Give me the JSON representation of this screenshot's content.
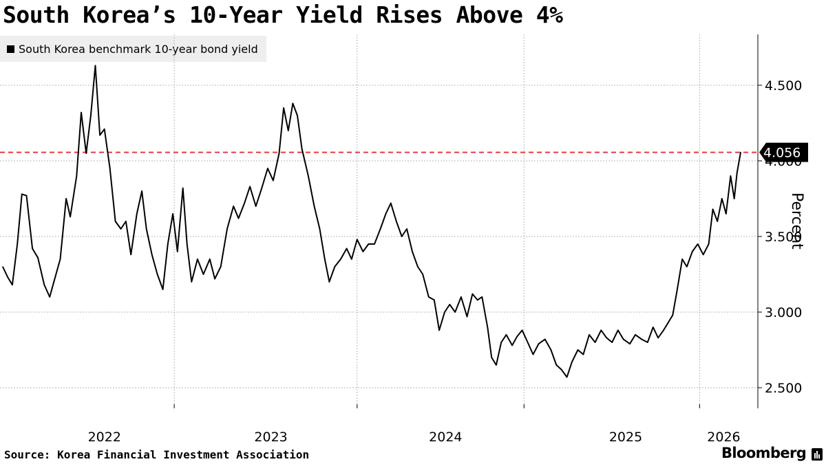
{
  "title": "South Korea’s 10-Year Yield Rises Above 4%",
  "legend_label": "South Korea benchmark 10-year bond yield",
  "source": "Source: Korea Financial Investment Association",
  "brand": "Bloomberg",
  "colors": {
    "line": "#000000",
    "reference_line": "#e8383d",
    "grid": "#b7b7b7",
    "callout_bg": "#000000",
    "legend_bg": "#eeeeee"
  },
  "chart_data": {
    "type": "line",
    "title": "South Korea’s 10-Year Yield Rises Above 4%",
    "xlabel": "",
    "ylabel": "Percent",
    "ylim": [
      2.35,
      4.85
    ],
    "xlim": [
      "2021-10-04",
      "2026-03-10"
    ],
    "grid": true,
    "legend_position": "top-left",
    "y_axis_side": "right",
    "yticks": [
      2.5,
      3.0,
      3.5,
      4.0,
      4.5
    ],
    "ytick_labels": [
      "2.500",
      "3.000",
      "3.500",
      "4.000",
      "4.500"
    ],
    "xtick_labels": [
      "2022",
      "2023",
      "2024",
      "2025",
      "2026"
    ],
    "x_label_positions": [
      "2022-05-15",
      "2023-05-15",
      "2024-06-01",
      "2025-07-01",
      "2026-02-01"
    ],
    "x_divider_dates": [
      "2022-10-15",
      "2023-11-20",
      "2024-11-20",
      "2025-12-10"
    ],
    "reference_line": {
      "value": 4.056,
      "style": "dashed"
    },
    "callout": {
      "label": "4.056",
      "value": 4.056
    },
    "series": [
      {
        "name": "South Korea benchmark 10-year bond yield",
        "points": [
          [
            "2021-10-04",
            3.3
          ],
          [
            "2021-10-15",
            3.23
          ],
          [
            "2021-10-25",
            3.18
          ],
          [
            "2021-11-05",
            3.45
          ],
          [
            "2021-11-15",
            3.78
          ],
          [
            "2021-11-25",
            3.77
          ],
          [
            "2021-12-08",
            3.42
          ],
          [
            "2021-12-20",
            3.36
          ],
          [
            "2022-01-03",
            3.18
          ],
          [
            "2022-01-15",
            3.1
          ],
          [
            "2022-01-25",
            3.21
          ],
          [
            "2022-02-07",
            3.35
          ],
          [
            "2022-02-20",
            3.75
          ],
          [
            "2022-03-01",
            3.63
          ],
          [
            "2022-03-15",
            3.9
          ],
          [
            "2022-03-25",
            4.32
          ],
          [
            "2022-04-05",
            4.05
          ],
          [
            "2022-04-15",
            4.3
          ],
          [
            "2022-04-25",
            4.63
          ],
          [
            "2022-05-05",
            4.17
          ],
          [
            "2022-05-15",
            4.21
          ],
          [
            "2022-05-27",
            3.95
          ],
          [
            "2022-06-08",
            3.6
          ],
          [
            "2022-06-20",
            3.55
          ],
          [
            "2022-07-01",
            3.6
          ],
          [
            "2022-07-12",
            3.38
          ],
          [
            "2022-07-25",
            3.65
          ],
          [
            "2022-08-05",
            3.8
          ],
          [
            "2022-08-15",
            3.55
          ],
          [
            "2022-08-27",
            3.38
          ],
          [
            "2022-09-08",
            3.25
          ],
          [
            "2022-09-20",
            3.15
          ],
          [
            "2022-10-01",
            3.45
          ],
          [
            "2022-10-12",
            3.65
          ],
          [
            "2022-10-22",
            3.4
          ],
          [
            "2022-11-03",
            3.82
          ],
          [
            "2022-11-12",
            3.45
          ],
          [
            "2022-11-22",
            3.2
          ],
          [
            "2022-12-05",
            3.35
          ],
          [
            "2022-12-18",
            3.25
          ],
          [
            "2023-01-01",
            3.35
          ],
          [
            "2023-01-12",
            3.22
          ],
          [
            "2023-01-25",
            3.3
          ],
          [
            "2023-02-08",
            3.55
          ],
          [
            "2023-02-22",
            3.7
          ],
          [
            "2023-03-05",
            3.62
          ],
          [
            "2023-03-18",
            3.72
          ],
          [
            "2023-03-30",
            3.83
          ],
          [
            "2023-04-12",
            3.7
          ],
          [
            "2023-04-25",
            3.82
          ],
          [
            "2023-05-08",
            3.95
          ],
          [
            "2023-05-20",
            3.87
          ],
          [
            "2023-06-02",
            4.05
          ],
          [
            "2023-06-12",
            4.35
          ],
          [
            "2023-06-22",
            4.2
          ],
          [
            "2023-07-02",
            4.38
          ],
          [
            "2023-07-12",
            4.3
          ],
          [
            "2023-07-22",
            4.08
          ],
          [
            "2023-08-05",
            3.9
          ],
          [
            "2023-08-18",
            3.7
          ],
          [
            "2023-08-30",
            3.55
          ],
          [
            "2023-09-10",
            3.35
          ],
          [
            "2023-09-20",
            3.2
          ],
          [
            "2023-10-02",
            3.3
          ],
          [
            "2023-10-15",
            3.35
          ],
          [
            "2023-10-28",
            3.42
          ],
          [
            "2023-11-08",
            3.35
          ],
          [
            "2023-11-20",
            3.48
          ],
          [
            "2023-12-03",
            3.4
          ],
          [
            "2023-12-15",
            3.45
          ],
          [
            "2023-12-28",
            3.45
          ],
          [
            "2024-01-10",
            3.55
          ],
          [
            "2024-01-22",
            3.65
          ],
          [
            "2024-02-02",
            3.72
          ],
          [
            "2024-02-14",
            3.6
          ],
          [
            "2024-02-26",
            3.5
          ],
          [
            "2024-03-08",
            3.55
          ],
          [
            "2024-03-20",
            3.4
          ],
          [
            "2024-04-01",
            3.3
          ],
          [
            "2024-04-12",
            3.25
          ],
          [
            "2024-04-25",
            3.1
          ],
          [
            "2024-05-07",
            3.08
          ],
          [
            "2024-05-18",
            2.88
          ],
          [
            "2024-05-30",
            3.0
          ],
          [
            "2024-06-10",
            3.05
          ],
          [
            "2024-06-22",
            3.0
          ],
          [
            "2024-07-05",
            3.1
          ],
          [
            "2024-07-18",
            2.97
          ],
          [
            "2024-07-30",
            3.12
          ],
          [
            "2024-08-10",
            3.08
          ],
          [
            "2024-08-20",
            3.1
          ],
          [
            "2024-09-01",
            2.9
          ],
          [
            "2024-09-10",
            2.7
          ],
          [
            "2024-09-20",
            2.65
          ],
          [
            "2024-10-01",
            2.8
          ],
          [
            "2024-10-12",
            2.85
          ],
          [
            "2024-10-25",
            2.78
          ],
          [
            "2024-11-05",
            2.84
          ],
          [
            "2024-11-16",
            2.88
          ],
          [
            "2024-11-28",
            2.8
          ],
          [
            "2024-12-10",
            2.72
          ],
          [
            "2024-12-22",
            2.79
          ],
          [
            "2025-01-05",
            2.82
          ],
          [
            "2025-01-18",
            2.75
          ],
          [
            "2025-01-30",
            2.65
          ],
          [
            "2025-02-10",
            2.62
          ],
          [
            "2025-02-22",
            2.57
          ],
          [
            "2025-03-05",
            2.67
          ],
          [
            "2025-03-18",
            2.75
          ],
          [
            "2025-03-30",
            2.72
          ],
          [
            "2025-04-12",
            2.85
          ],
          [
            "2025-04-25",
            2.8
          ],
          [
            "2025-05-08",
            2.88
          ],
          [
            "2025-05-20",
            2.83
          ],
          [
            "2025-06-01",
            2.8
          ],
          [
            "2025-06-14",
            2.88
          ],
          [
            "2025-06-26",
            2.82
          ],
          [
            "2025-07-10",
            2.79
          ],
          [
            "2025-07-22",
            2.85
          ],
          [
            "2025-08-05",
            2.82
          ],
          [
            "2025-08-18",
            2.8
          ],
          [
            "2025-08-30",
            2.9
          ],
          [
            "2025-09-10",
            2.83
          ],
          [
            "2025-09-22",
            2.88
          ],
          [
            "2025-10-02",
            2.93
          ],
          [
            "2025-10-12",
            2.98
          ],
          [
            "2025-10-22",
            3.15
          ],
          [
            "2025-11-02",
            3.35
          ],
          [
            "2025-11-12",
            3.3
          ],
          [
            "2025-11-24",
            3.4
          ],
          [
            "2025-12-06",
            3.45
          ],
          [
            "2025-12-18",
            3.38
          ],
          [
            "2025-12-30",
            3.45
          ],
          [
            "2026-01-08",
            3.68
          ],
          [
            "2026-01-18",
            3.6
          ],
          [
            "2026-01-28",
            3.75
          ],
          [
            "2026-02-06",
            3.65
          ],
          [
            "2026-02-16",
            3.9
          ],
          [
            "2026-02-24",
            3.75
          ],
          [
            "2026-03-02",
            3.92
          ],
          [
            "2026-03-10",
            4.056
          ]
        ]
      }
    ]
  }
}
